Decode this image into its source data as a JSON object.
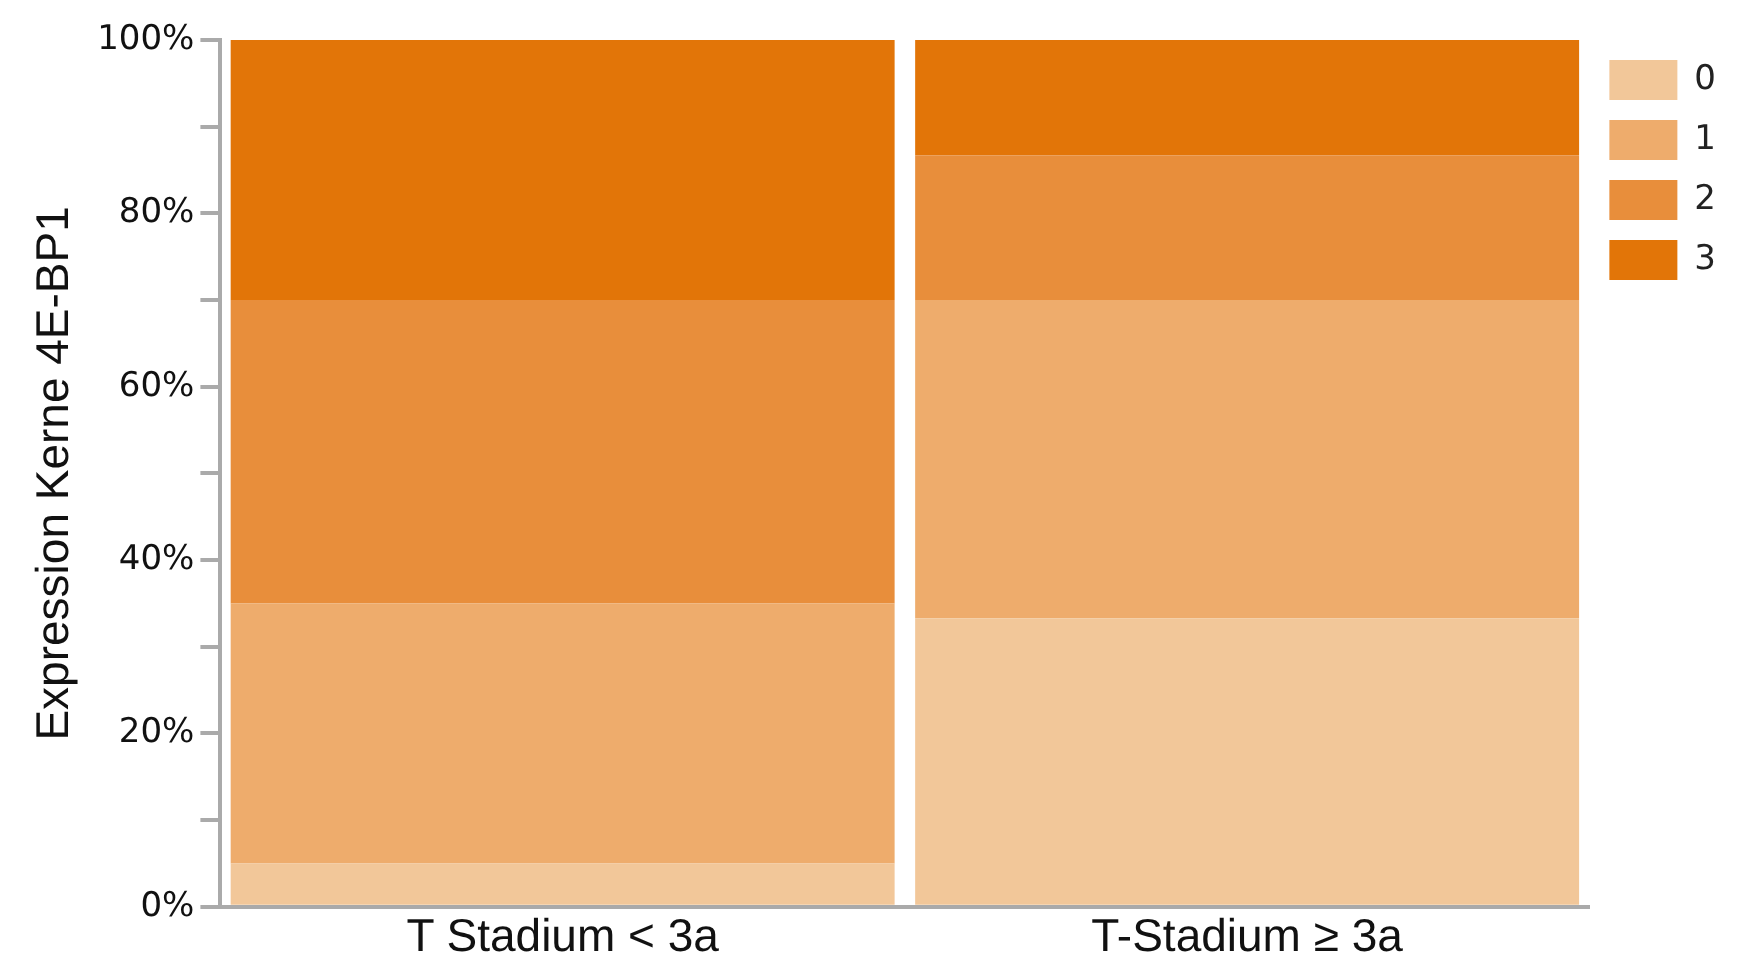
{
  "chart_data": {
    "type": "bar",
    "stacked": true,
    "ylabel": "Expression Kerne 4E-BP1",
    "categories": [
      "T Stadium < 3a",
      "T-Stadium ≥ 3a"
    ],
    "series": [
      {
        "name": "0",
        "color": "#f2c799",
        "values": [
          5,
          33.3
        ]
      },
      {
        "name": "1",
        "color": "#eeac6c",
        "values": [
          30,
          36.7
        ]
      },
      {
        "name": "2",
        "color": "#e88e3b",
        "values": [
          35,
          16.7
        ]
      },
      {
        "name": "3",
        "color": "#e27508",
        "values": [
          30,
          13.3
        ]
      }
    ],
    "ylim": [
      0,
      100
    ],
    "yticks": [
      {
        "value": 0,
        "label": "0%"
      },
      {
        "value": 10,
        "label": null
      },
      {
        "value": 20,
        "label": "20%"
      },
      {
        "value": 30,
        "label": null
      },
      {
        "value": 40,
        "label": "40%"
      },
      {
        "value": 50,
        "label": null
      },
      {
        "value": 60,
        "label": "60%"
      },
      {
        "value": 70,
        "label": null
      },
      {
        "value": 80,
        "label": "80%"
      },
      {
        "value": 90,
        "label": null
      },
      {
        "value": 100,
        "label": "100%"
      }
    ],
    "legend": "top right",
    "grid": false
  }
}
